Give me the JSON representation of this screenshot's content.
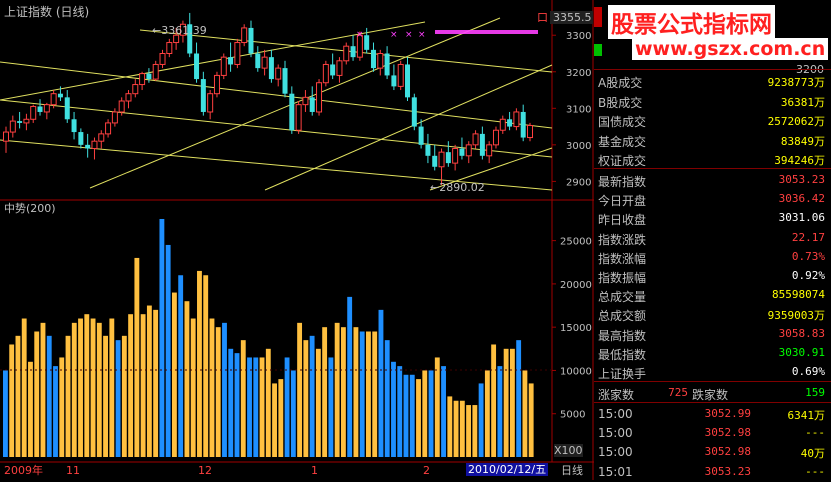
{
  "window": {
    "title": "上证指数 (日线)",
    "price_box": "3355.5",
    "close_box": "口"
  },
  "main_chart": {
    "y_ticks": [
      "3300",
      "3200",
      "3100",
      "3000",
      "2900"
    ],
    "annotation_high": "←3361.39",
    "annotation_low": "←2890.02",
    "candles": [
      {
        "o": 3010,
        "h": 3050,
        "l": 2978,
        "c": 3035
      },
      {
        "o": 3035,
        "h": 3080,
        "l": 3020,
        "c": 3065
      },
      {
        "o": 3065,
        "h": 3090,
        "l": 3045,
        "c": 3060
      },
      {
        "o": 3060,
        "h": 3085,
        "l": 3040,
        "c": 3070
      },
      {
        "o": 3070,
        "h": 3110,
        "l": 3060,
        "c": 3105
      },
      {
        "o": 3105,
        "h": 3125,
        "l": 3080,
        "c": 3090
      },
      {
        "o": 3090,
        "h": 3115,
        "l": 3070,
        "c": 3110
      },
      {
        "o": 3110,
        "h": 3150,
        "l": 3100,
        "c": 3140
      },
      {
        "o": 3140,
        "h": 3160,
        "l": 3120,
        "c": 3130
      },
      {
        "o": 3130,
        "h": 3150,
        "l": 3060,
        "c": 3070
      },
      {
        "o": 3070,
        "h": 3090,
        "l": 3015,
        "c": 3035
      },
      {
        "o": 3035,
        "h": 3045,
        "l": 2990,
        "c": 3000
      },
      {
        "o": 3000,
        "h": 3030,
        "l": 2965,
        "c": 2990
      },
      {
        "o": 2990,
        "h": 3020,
        "l": 2960,
        "c": 3010
      },
      {
        "o": 3010,
        "h": 3040,
        "l": 2990,
        "c": 3030
      },
      {
        "o": 3030,
        "h": 3070,
        "l": 3020,
        "c": 3060
      },
      {
        "o": 3060,
        "h": 3100,
        "l": 3050,
        "c": 3090
      },
      {
        "o": 3090,
        "h": 3130,
        "l": 3080,
        "c": 3120
      },
      {
        "o": 3120,
        "h": 3150,
        "l": 3100,
        "c": 3140
      },
      {
        "o": 3140,
        "h": 3180,
        "l": 3130,
        "c": 3165
      },
      {
        "o": 3165,
        "h": 3200,
        "l": 3150,
        "c": 3195
      },
      {
        "o": 3195,
        "h": 3210,
        "l": 3170,
        "c": 3180
      },
      {
        "o": 3180,
        "h": 3230,
        "l": 3175,
        "c": 3220
      },
      {
        "o": 3220,
        "h": 3260,
        "l": 3210,
        "c": 3250
      },
      {
        "o": 3250,
        "h": 3290,
        "l": 3240,
        "c": 3280
      },
      {
        "o": 3280,
        "h": 3320,
        "l": 3260,
        "c": 3300
      },
      {
        "o": 3300,
        "h": 3340,
        "l": 3280,
        "c": 3330
      },
      {
        "o": 3330,
        "h": 3361,
        "l": 3240,
        "c": 3250
      },
      {
        "o": 3250,
        "h": 3280,
        "l": 3170,
        "c": 3180
      },
      {
        "o": 3180,
        "h": 3200,
        "l": 3080,
        "c": 3090
      },
      {
        "o": 3090,
        "h": 3150,
        "l": 3070,
        "c": 3140
      },
      {
        "o": 3140,
        "h": 3200,
        "l": 3130,
        "c": 3190
      },
      {
        "o": 3190,
        "h": 3250,
        "l": 3180,
        "c": 3240
      },
      {
        "o": 3240,
        "h": 3280,
        "l": 3200,
        "c": 3220
      },
      {
        "o": 3220,
        "h": 3290,
        "l": 3210,
        "c": 3280
      },
      {
        "o": 3280,
        "h": 3330,
        "l": 3270,
        "c": 3320
      },
      {
        "o": 3320,
        "h": 3340,
        "l": 3240,
        "c": 3250
      },
      {
        "o": 3250,
        "h": 3270,
        "l": 3200,
        "c": 3210
      },
      {
        "o": 3210,
        "h": 3260,
        "l": 3190,
        "c": 3240
      },
      {
        "o": 3240,
        "h": 3260,
        "l": 3170,
        "c": 3180
      },
      {
        "o": 3180,
        "h": 3220,
        "l": 3160,
        "c": 3210
      },
      {
        "o": 3210,
        "h": 3230,
        "l": 3130,
        "c": 3140
      },
      {
        "o": 3140,
        "h": 3160,
        "l": 3030,
        "c": 3040
      },
      {
        "o": 3040,
        "h": 3120,
        "l": 3030,
        "c": 3110
      },
      {
        "o": 3110,
        "h": 3150,
        "l": 3090,
        "c": 3130
      },
      {
        "o": 3130,
        "h": 3160,
        "l": 3080,
        "c": 3090
      },
      {
        "o": 3090,
        "h": 3180,
        "l": 3080,
        "c": 3170
      },
      {
        "o": 3170,
        "h": 3230,
        "l": 3160,
        "c": 3220
      },
      {
        "o": 3220,
        "h": 3250,
        "l": 3180,
        "c": 3190
      },
      {
        "o": 3190,
        "h": 3240,
        "l": 3170,
        "c": 3230
      },
      {
        "o": 3230,
        "h": 3280,
        "l": 3220,
        "c": 3270
      },
      {
        "o": 3270,
        "h": 3300,
        "l": 3230,
        "c": 3240
      },
      {
        "o": 3240,
        "h": 3310,
        "l": 3230,
        "c": 3300
      },
      {
        "o": 3300,
        "h": 3320,
        "l": 3250,
        "c": 3260
      },
      {
        "o": 3260,
        "h": 3280,
        "l": 3200,
        "c": 3210
      },
      {
        "o": 3210,
        "h": 3260,
        "l": 3190,
        "c": 3250
      },
      {
        "o": 3250,
        "h": 3270,
        "l": 3180,
        "c": 3190
      },
      {
        "o": 3190,
        "h": 3220,
        "l": 3150,
        "c": 3160
      },
      {
        "o": 3160,
        "h": 3230,
        "l": 3150,
        "c": 3220
      },
      {
        "o": 3220,
        "h": 3240,
        "l": 3120,
        "c": 3130
      },
      {
        "o": 3130,
        "h": 3140,
        "l": 3040,
        "c": 3050
      },
      {
        "o": 3050,
        "h": 3070,
        "l": 2990,
        "c": 3000
      },
      {
        "o": 3000,
        "h": 3030,
        "l": 2950,
        "c": 2970
      },
      {
        "o": 2970,
        "h": 3000,
        "l": 2930,
        "c": 2940
      },
      {
        "o": 2940,
        "h": 2990,
        "l": 2890,
        "c": 2980
      },
      {
        "o": 2980,
        "h": 3010,
        "l": 2940,
        "c": 2950
      },
      {
        "o": 2950,
        "h": 3000,
        "l": 2930,
        "c": 2990
      },
      {
        "o": 2990,
        "h": 3020,
        "l": 2960,
        "c": 2970
      },
      {
        "o": 2970,
        "h": 3010,
        "l": 2950,
        "c": 3000
      },
      {
        "o": 3000,
        "h": 3040,
        "l": 2990,
        "c": 3030
      },
      {
        "o": 3030,
        "h": 3050,
        "l": 2960,
        "c": 2970
      },
      {
        "o": 2970,
        "h": 3010,
        "l": 2950,
        "c": 3000
      },
      {
        "o": 3000,
        "h": 3050,
        "l": 2990,
        "c": 3040
      },
      {
        "o": 3040,
        "h": 3080,
        "l": 3030,
        "c": 3070
      },
      {
        "o": 3070,
        "h": 3090,
        "l": 3040,
        "c": 3050
      },
      {
        "o": 3050,
        "h": 3100,
        "l": 3040,
        "c": 3090
      },
      {
        "o": 3090,
        "h": 3110,
        "l": 3010,
        "c": 3020
      },
      {
        "o": 3020,
        "h": 3060,
        "l": 3010,
        "c": 3053
      }
    ]
  },
  "sub_chart": {
    "title": "中势(200)",
    "y_ticks": [
      "25000",
      "20000",
      "15000",
      "10000",
      "5000"
    ],
    "unit": "X100",
    "bars": [
      {
        "v": 10000,
        "c": "b"
      },
      {
        "v": 13000,
        "c": "o"
      },
      {
        "v": 14000,
        "c": "o"
      },
      {
        "v": 16000,
        "c": "o"
      },
      {
        "v": 11000,
        "c": "o"
      },
      {
        "v": 14500,
        "c": "o"
      },
      {
        "v": 15500,
        "c": "o"
      },
      {
        "v": 14000,
        "c": "b"
      },
      {
        "v": 10500,
        "c": "b"
      },
      {
        "v": 11500,
        "c": "o"
      },
      {
        "v": 14000,
        "c": "o"
      },
      {
        "v": 15500,
        "c": "o"
      },
      {
        "v": 16000,
        "c": "o"
      },
      {
        "v": 16500,
        "c": "o"
      },
      {
        "v": 16000,
        "c": "o"
      },
      {
        "v": 15500,
        "c": "o"
      },
      {
        "v": 14000,
        "c": "o"
      },
      {
        "v": 16000,
        "c": "o"
      },
      {
        "v": 13500,
        "c": "b"
      },
      {
        "v": 14000,
        "c": "o"
      },
      {
        "v": 16500,
        "c": "o"
      },
      {
        "v": 23000,
        "c": "o"
      },
      {
        "v": 16500,
        "c": "o"
      },
      {
        "v": 17500,
        "c": "o"
      },
      {
        "v": 17000,
        "c": "o"
      },
      {
        "v": 27500,
        "c": "b"
      },
      {
        "v": 24500,
        "c": "b"
      },
      {
        "v": 19000,
        "c": "o"
      },
      {
        "v": 21000,
        "c": "b"
      },
      {
        "v": 18000,
        "c": "o"
      },
      {
        "v": 16000,
        "c": "o"
      },
      {
        "v": 21500,
        "c": "o"
      },
      {
        "v": 21000,
        "c": "o"
      },
      {
        "v": 16000,
        "c": "o"
      },
      {
        "v": 15000,
        "c": "o"
      },
      {
        "v": 15500,
        "c": "b"
      },
      {
        "v": 12500,
        "c": "b"
      },
      {
        "v": 12000,
        "c": "b"
      },
      {
        "v": 13500,
        "c": "o"
      },
      {
        "v": 11500,
        "c": "b"
      },
      {
        "v": 11500,
        "c": "b"
      },
      {
        "v": 11500,
        "c": "o"
      },
      {
        "v": 12500,
        "c": "o"
      },
      {
        "v": 8500,
        "c": "o"
      },
      {
        "v": 9000,
        "c": "o"
      },
      {
        "v": 11500,
        "c": "b"
      },
      {
        "v": 10000,
        "c": "b"
      },
      {
        "v": 15500,
        "c": "o"
      },
      {
        "v": 13500,
        "c": "o"
      },
      {
        "v": 14000,
        "c": "b"
      },
      {
        "v": 12500,
        "c": "o"
      },
      {
        "v": 15000,
        "c": "o"
      },
      {
        "v": 11500,
        "c": "b"
      },
      {
        "v": 15500,
        "c": "o"
      },
      {
        "v": 15000,
        "c": "o"
      },
      {
        "v": 18500,
        "c": "b"
      },
      {
        "v": 15000,
        "c": "o"
      },
      {
        "v": 14500,
        "c": "b"
      },
      {
        "v": 14500,
        "c": "o"
      },
      {
        "v": 14500,
        "c": "o"
      },
      {
        "v": 17000,
        "c": "b"
      },
      {
        "v": 13500,
        "c": "b"
      },
      {
        "v": 11000,
        "c": "b"
      },
      {
        "v": 10500,
        "c": "b"
      },
      {
        "v": 9500,
        "c": "b"
      },
      {
        "v": 9500,
        "c": "b"
      },
      {
        "v": 9000,
        "c": "o"
      },
      {
        "v": 10000,
        "c": "o"
      },
      {
        "v": 10000,
        "c": "b"
      },
      {
        "v": 11500,
        "c": "o"
      },
      {
        "v": 10500,
        "c": "b"
      },
      {
        "v": 7000,
        "c": "o"
      },
      {
        "v": 6500,
        "c": "o"
      },
      {
        "v": 6500,
        "c": "o"
      },
      {
        "v": 6000,
        "c": "o"
      },
      {
        "v": 6000,
        "c": "o"
      },
      {
        "v": 8500,
        "c": "b"
      },
      {
        "v": 10000,
        "c": "o"
      },
      {
        "v": 13000,
        "c": "o"
      },
      {
        "v": 10500,
        "c": "b"
      },
      {
        "v": 12500,
        "c": "o"
      },
      {
        "v": 12500,
        "c": "o"
      },
      {
        "v": 13500,
        "c": "b"
      },
      {
        "v": 10000,
        "c": "o"
      },
      {
        "v": 8500,
        "c": "o"
      }
    ]
  },
  "time_axis": {
    "labels": [
      "2009年",
      "11",
      "12",
      "1",
      "2"
    ],
    "current_date": "2010/02/12/五",
    "period_label": "日线"
  },
  "sidebar": {
    "logo_top": "股票公式指标网",
    "logo_url": "www.gszx.com.cn",
    "mini_ticks": [
      "3300",
      "3200",
      "3100",
      "3000",
      "2900"
    ],
    "volume_rows": [
      {
        "label": "A股成交",
        "value": "9238773万",
        "color": "#ffff00"
      },
      {
        "label": "B股成交",
        "value": "36381万",
        "color": "#ffff00"
      },
      {
        "label": "国债成交",
        "value": "2572062万",
        "color": "#ffff00"
      },
      {
        "label": "基金成交",
        "value": "83849万",
        "color": "#ffff00"
      },
      {
        "label": "权证成交",
        "value": "394246万",
        "color": "#ffff00"
      }
    ],
    "quote_rows": [
      {
        "label": "最新指数",
        "value": "3053.23",
        "color": "#ff4040"
      },
      {
        "label": "今日开盘",
        "value": "3036.42",
        "color": "#ff4040"
      },
      {
        "label": "昨日收盘",
        "value": "3031.06",
        "color": "#ffffff"
      },
      {
        "label": "指数涨跌",
        "value": "22.17",
        "color": "#ff4040"
      },
      {
        "label": "指数涨幅",
        "value": "0.73%",
        "color": "#ff4040"
      },
      {
        "label": "指数振幅",
        "value": "0.92%",
        "color": "#ffffff"
      },
      {
        "label": "总成交量",
        "value": "85598074",
        "color": "#ffff00"
      },
      {
        "label": "总成交额",
        "value": "9359003万",
        "color": "#ffff00"
      },
      {
        "label": "最高指数",
        "value": "3058.83",
        "color": "#ff4040"
      },
      {
        "label": "最低指数",
        "value": "3030.91",
        "color": "#00ff00"
      },
      {
        "label": "上证换手",
        "value": "0.69%",
        "color": "#ffffff"
      }
    ],
    "breadth": {
      "up_label": "涨家数",
      "up_value": "725",
      "down_label": "跌家数",
      "down_value": "159"
    },
    "ticks": [
      {
        "time": "15:00",
        "price": "3052.99",
        "vol": "6341万"
      },
      {
        "time": "15:00",
        "price": "3052.98",
        "vol": "---"
      },
      {
        "time": "15:00",
        "price": "3052.98",
        "vol": "40万"
      },
      {
        "time": "15:01",
        "price": "3053.23",
        "vol": "---"
      }
    ]
  }
}
